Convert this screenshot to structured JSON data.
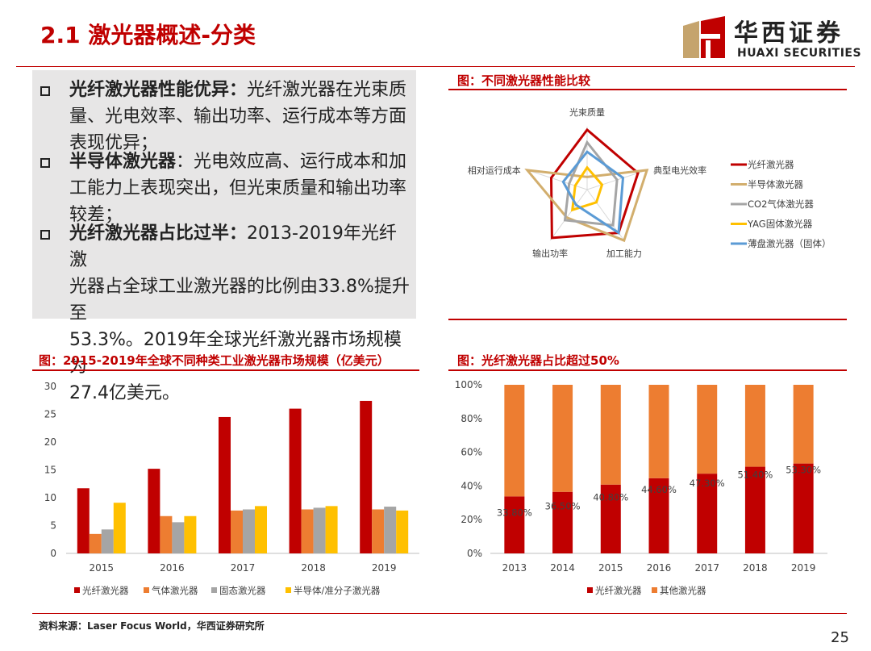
{
  "header": {
    "title": "2.1 激光器概述-分类",
    "logo_cn": "华西证券",
    "logo_en": "HUAXI SECURITIES",
    "logo_color": "#C00000"
  },
  "bullets": [
    {
      "bold": "光纤激光器性能优异：",
      "lines": [
        "光纤激光器在光束质",
        "量、光电效率、输出功率、运行成本等方面",
        "表现优异；"
      ]
    },
    {
      "bold": "半导体激光器",
      "lines": [
        "：光电效应高、运行成本和加",
        "工能力上表现突出，但光束质量和输出功率",
        "较差；"
      ]
    },
    {
      "bold": "光纤激光器占比过半：",
      "lines": [
        "2013-2019年光纤激",
        "光器占全球工业激光器的比例由33.8%提升至",
        "53.3%。2019年全球光纤激光器市场规模为",
        "27.4亿美元。"
      ]
    }
  ],
  "radar": {
    "title": "图：不同激光器性能比较",
    "axes": [
      "光束质量",
      "典型电光效率",
      "加工能力",
      "输出功率",
      "相对运行成本"
    ],
    "series": [
      {
        "name": "光纤激光器",
        "color": "#C00000",
        "values": [
          0.95,
          0.85,
          0.85,
          0.95,
          0.6
        ]
      },
      {
        "name": "半导体激光器",
        "color": "#D2AE6D",
        "values": [
          0.2,
          1.0,
          1.0,
          0.55,
          1.0
        ]
      },
      {
        "name": "CO2气体激光器",
        "color": "#A5A5A5",
        "values": [
          0.75,
          0.5,
          0.7,
          0.6,
          0.3
        ]
      },
      {
        "name": "YAG固体激光器",
        "color": "#FFC000",
        "values": [
          0.35,
          0.25,
          0.25,
          0.4,
          0.2
        ]
      },
      {
        "name": "薄盘激光器（固体）",
        "color": "#5B9BD5",
        "values": [
          0.6,
          0.6,
          0.85,
          0.3,
          0.4
        ]
      }
    ]
  },
  "chart_data": [
    {
      "type": "bar",
      "title": "图：2015-2019年全球不同种类工业激光器市场规模（亿美元）",
      "categories": [
        "2015",
        "2016",
        "2017",
        "2018",
        "2019"
      ],
      "ylim": [
        0,
        30
      ],
      "yticks": [
        "0",
        "5",
        "10",
        "15",
        "20",
        "25",
        "30"
      ],
      "series": [
        {
          "name": "光纤激光器",
          "color": "#C00000",
          "values": [
            11.7,
            15.2,
            24.5,
            26.0,
            27.4
          ]
        },
        {
          "name": "气体激光器",
          "color": "#ED7D31",
          "values": [
            3.5,
            6.7,
            7.7,
            7.9,
            7.9
          ]
        },
        {
          "name": "固态激光器",
          "color": "#A5A5A5",
          "values": [
            4.3,
            5.6,
            7.9,
            8.2,
            8.4
          ]
        },
        {
          "name": "半导体/准分子激光器",
          "color": "#FFC000",
          "values": [
            9.1,
            6.7,
            8.5,
            8.5,
            7.7
          ]
        }
      ],
      "legend": "bottom"
    },
    {
      "type": "bar",
      "stacked": true,
      "title": "图：光纤激光器占比超过50%",
      "categories": [
        "2013",
        "2014",
        "2015",
        "2016",
        "2017",
        "2018",
        "2019"
      ],
      "ylim": [
        0,
        100
      ],
      "yticks": [
        "0%",
        "20%",
        "40%",
        "60%",
        "80%",
        "100%"
      ],
      "series": [
        {
          "name": "光纤激光器",
          "color": "#C00000",
          "values": [
            33.8,
            36.5,
            40.8,
            44.6,
            47.3,
            51.4,
            53.3
          ]
        },
        {
          "name": "其他激光器",
          "color": "#ED7D31",
          "values": [
            66.2,
            63.5,
            59.2,
            55.4,
            52.7,
            48.6,
            46.7
          ]
        }
      ],
      "data_labels": [
        "33.80%",
        "36.50%",
        "40.80%",
        "44.60%",
        "47.30%",
        "51.40%",
        "53.30%"
      ],
      "legend": "bottom"
    }
  ],
  "footer": {
    "source": "资料来源：Laser Focus World，华西证券研究所",
    "page": "25"
  }
}
